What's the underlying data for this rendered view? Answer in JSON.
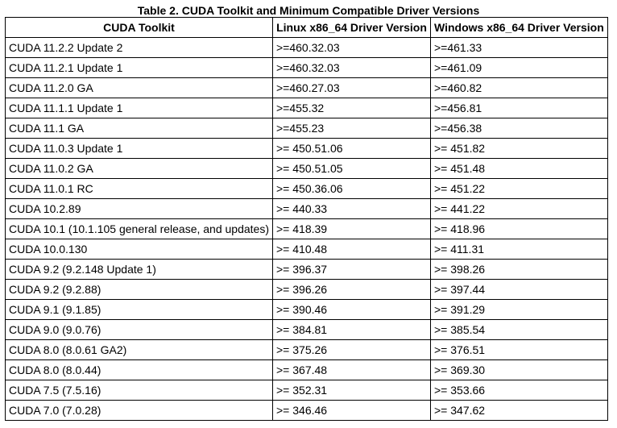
{
  "caption": "Table 2. CUDA Toolkit and Minimum Compatible Driver Versions",
  "columns": [
    "CUDA Toolkit",
    "Linux x86_64 Driver Version",
    "Windows x86_64 Driver Version"
  ],
  "rows": [
    [
      "CUDA 11.2.2 Update 2",
      ">=460.32.03",
      ">=461.33"
    ],
    [
      "CUDA 11.2.1 Update 1",
      ">=460.32.03",
      ">=461.09"
    ],
    [
      "CUDA 11.2.0 GA",
      ">=460.27.03",
      ">=460.82"
    ],
    [
      "CUDA 11.1.1 Update 1",
      ">=455.32",
      ">=456.81"
    ],
    [
      "CUDA 11.1 GA",
      ">=455.23",
      ">=456.38"
    ],
    [
      "CUDA 11.0.3 Update 1",
      ">= 450.51.06",
      ">= 451.82"
    ],
    [
      "CUDA 11.0.2 GA",
      ">= 450.51.05",
      ">= 451.48"
    ],
    [
      "CUDA 11.0.1 RC",
      ">= 450.36.06",
      ">= 451.22"
    ],
    [
      "CUDA 10.2.89",
      ">= 440.33",
      ">= 441.22"
    ],
    [
      "CUDA 10.1 (10.1.105 general release, and updates)",
      ">= 418.39",
      ">= 418.96"
    ],
    [
      "CUDA 10.0.130",
      ">= 410.48",
      ">= 411.31"
    ],
    [
      "CUDA 9.2 (9.2.148 Update 1)",
      ">= 396.37",
      ">= 398.26"
    ],
    [
      "CUDA 9.2 (9.2.88)",
      ">= 396.26",
      ">= 397.44"
    ],
    [
      "CUDA 9.1 (9.1.85)",
      ">= 390.46",
      ">= 391.29"
    ],
    [
      "CUDA 9.0 (9.0.76)",
      ">= 384.81",
      ">= 385.54"
    ],
    [
      "CUDA 8.0 (8.0.61 GA2)",
      ">= 375.26",
      ">= 376.51"
    ],
    [
      "CUDA 8.0 (8.0.44)",
      ">= 367.48",
      ">= 369.30"
    ],
    [
      "CUDA 7.5 (7.5.16)",
      ">= 352.31",
      ">= 353.66"
    ],
    [
      "CUDA 7.0 (7.0.28)",
      ">= 346.46",
      ">= 347.62"
    ]
  ]
}
